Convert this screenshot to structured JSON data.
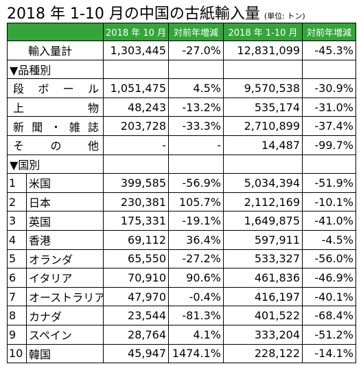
{
  "header": {
    "title": "2018 年 1-10 月の中国の古紙輸入量",
    "unit": "(単位: トン)"
  },
  "table": {
    "columns": [
      "2018 年 10 月",
      "対前年増減",
      "2018 年 1-10 月",
      "対前年増減"
    ],
    "total": {
      "label": "輸入量計",
      "values": [
        "1,303,445",
        "-27.0%",
        "12,831,099",
        "-45.3%"
      ]
    },
    "grade_section": "▼品種別",
    "grades": [
      {
        "label": "段 ボ ー ル",
        "values": [
          "1,051,475",
          "4.5%",
          "9,570,538",
          "-30.9%"
        ]
      },
      {
        "label": "上 物",
        "values": [
          "48,243",
          "-13.2%",
          "535,174",
          "-31.0%"
        ]
      },
      {
        "label": "新 聞 ・ 雑 誌",
        "values": [
          "203,728",
          "-33.3%",
          "2,710,899",
          "-37.4%"
        ]
      },
      {
        "label": "そ の 他",
        "values": [
          "-",
          "-",
          "14,487",
          "-99.7%"
        ]
      }
    ],
    "country_section": "▼国別",
    "countries": [
      {
        "rank": "1",
        "label": "米国",
        "values": [
          "399,585",
          "-56.9%",
          "5,034,394",
          "-51.9%"
        ]
      },
      {
        "rank": "2",
        "label": "日本",
        "values": [
          "230,381",
          "105.7%",
          "2,112,169",
          "-10.1%"
        ]
      },
      {
        "rank": "3",
        "label": "英国",
        "values": [
          "175,331",
          "-19.1%",
          "1,649,875",
          "-41.0%"
        ]
      },
      {
        "rank": "4",
        "label": "香港",
        "values": [
          "69,112",
          "36.4%",
          "597,911",
          "-4.5%"
        ]
      },
      {
        "rank": "5",
        "label": "オランダ",
        "values": [
          "65,550",
          "-27.2%",
          "533,327",
          "-56.0%"
        ]
      },
      {
        "rank": "6",
        "label": "イタリア",
        "values": [
          "70,910",
          "90.6%",
          "461,836",
          "-46.9%"
        ]
      },
      {
        "rank": "7",
        "label": "オーストラリア",
        "values": [
          "47,970",
          "-0.4%",
          "416,197",
          "-40.1%"
        ]
      },
      {
        "rank": "8",
        "label": "カナダ",
        "values": [
          "23,544",
          "-81.3%",
          "401,522",
          "-68.4%"
        ]
      },
      {
        "rank": "9",
        "label": "スペイン",
        "values": [
          "28,764",
          "4.1%",
          "333,204",
          "-51.2%"
        ]
      },
      {
        "rank": "10",
        "label": "韓国",
        "values": [
          "45,947",
          "1474.1%",
          "228,122",
          "-14.1%"
        ]
      }
    ]
  }
}
